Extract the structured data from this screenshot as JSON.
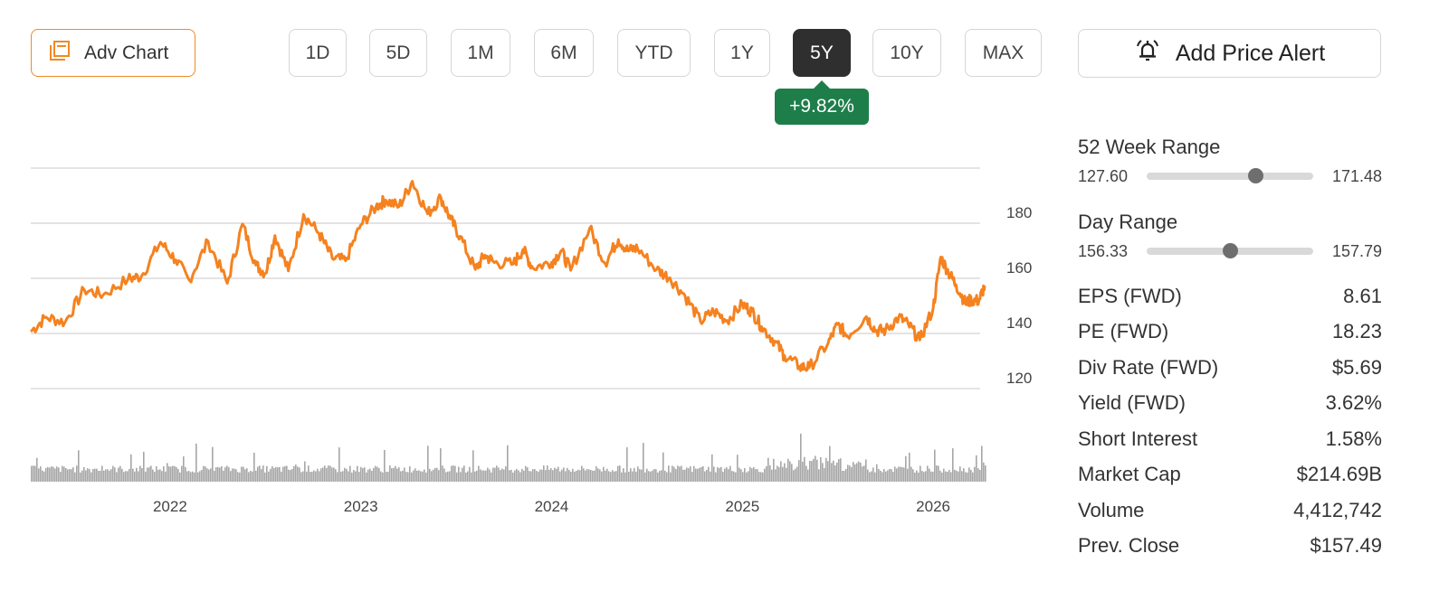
{
  "toolbar": {
    "adv_chart_label": "Adv Chart",
    "periods": [
      "1D",
      "5D",
      "1M",
      "6M",
      "YTD",
      "1Y",
      "5Y",
      "10Y",
      "MAX"
    ],
    "active_period": "5Y",
    "change_text": "+9.82%",
    "change_color": "#1e7e4a",
    "alert_label": "Add Price Alert"
  },
  "ranges": {
    "week52": {
      "title": "52 Week Range",
      "low": "127.60",
      "high": "171.48",
      "position": 0.65
    },
    "day": {
      "title": "Day Range",
      "low": "156.33",
      "high": "157.79",
      "position": 0.5
    }
  },
  "stats": [
    {
      "label": "EPS (FWD)",
      "value": "8.61"
    },
    {
      "label": "PE (FWD)",
      "value": "18.23"
    },
    {
      "label": "Div Rate (FWD)",
      "value": "$5.69"
    },
    {
      "label": "Yield (FWD)",
      "value": "3.62%"
    },
    {
      "label": "Short Interest",
      "value": "1.58%"
    },
    {
      "label": "Market Cap",
      "value": "$214.69B"
    },
    {
      "label": "Volume",
      "value": "4,412,742"
    },
    {
      "label": "Prev. Close",
      "value": "$157.49"
    }
  ],
  "chart_data": {
    "type": "line",
    "line_color": "#f5821f",
    "volume_color": "#a6a6a6",
    "y_ticks": [
      120,
      140,
      160,
      180
    ],
    "ylim": [
      120,
      200
    ],
    "x_ticks": [
      2022,
      2023,
      2024,
      2025,
      2026
    ],
    "xlim": [
      2021.27,
      2026.27
    ],
    "grid": true,
    "series": [
      {
        "x": [
          2021.27,
          2021.35,
          2021.45,
          2021.55,
          2021.65,
          2021.78,
          2021.85,
          2021.95,
          2022.03,
          2022.1,
          2022.2,
          2022.3,
          2022.38,
          2022.45,
          2022.5,
          2022.55,
          2022.62,
          2022.7,
          2022.78,
          2022.85,
          2022.92,
          2023.0,
          2023.08,
          2023.13,
          2023.2,
          2023.27,
          2023.35,
          2023.42,
          2023.47,
          2023.52,
          2023.6,
          2023.65,
          2023.7,
          2023.8,
          2023.85,
          2023.9,
          2024.0,
          2024.05,
          2024.1,
          2024.2,
          2024.28,
          2024.35,
          2024.4,
          2024.45,
          2024.55,
          2024.62,
          2024.7,
          2024.78,
          2024.85,
          2024.92,
          2025.0,
          2025.05,
          2025.1,
          2025.17,
          2025.22,
          2025.3,
          2025.35,
          2025.45,
          2025.5,
          2025.55,
          2025.65,
          2025.7,
          2025.75,
          2025.82,
          2025.87,
          2025.93,
          2026.0,
          2026.04,
          2026.08,
          2026.12,
          2026.17,
          2026.2,
          2026.24,
          2026.27
        ],
        "values": [
          140.7,
          145.9,
          144.1,
          155.9,
          154.0,
          159.7,
          160.8,
          173.1,
          166.7,
          159.4,
          173.4,
          158.2,
          179.7,
          164.8,
          161.8,
          175.5,
          162.7,
          183.2,
          176.4,
          167.3,
          166.4,
          179.4,
          186.0,
          188.4,
          186.0,
          195.2,
          183.4,
          189.3,
          181.5,
          175.2,
          163.2,
          168.4,
          165.7,
          165.2,
          170.5,
          163.9,
          165.8,
          170.0,
          162.9,
          178.2,
          165.5,
          174.1,
          170.0,
          171.0,
          163.2,
          160.2,
          153.6,
          144.4,
          148.1,
          144.7,
          150.6,
          148.0,
          142.5,
          137.2,
          132.0,
          128.0,
          127.6,
          136.5,
          143.3,
          139.1,
          146.1,
          141.0,
          141.1,
          145.9,
          143.3,
          137.6,
          149.1,
          167.7,
          162.2,
          157.7,
          150.9,
          152.2,
          151.9,
          157.3
        ]
      }
    ]
  }
}
